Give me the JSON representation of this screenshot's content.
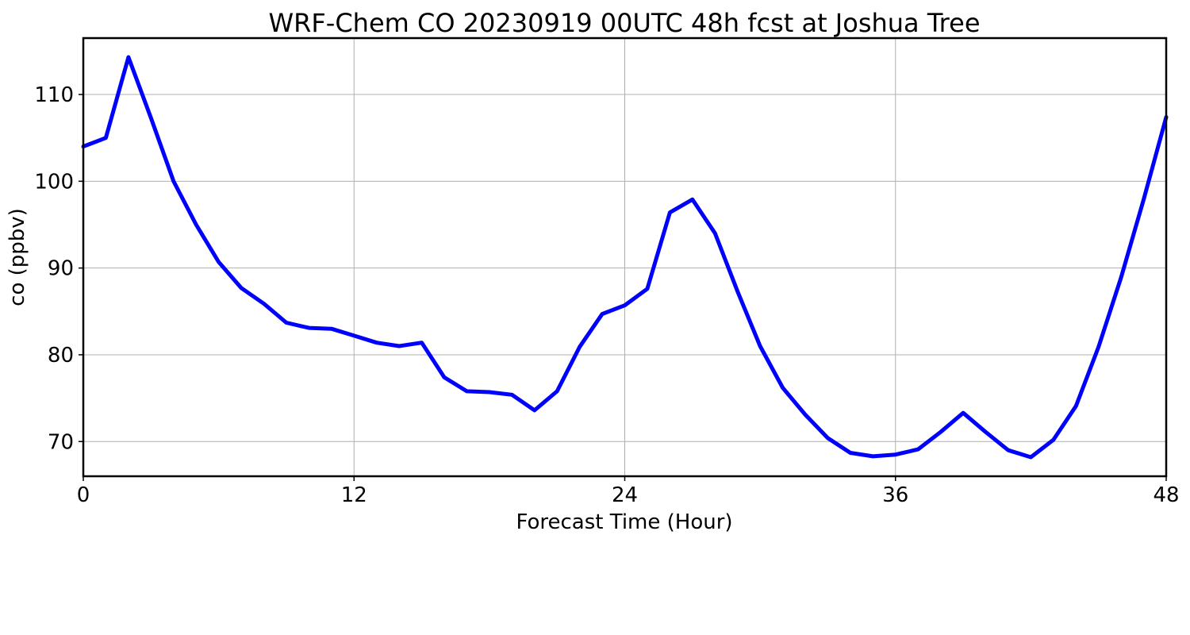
{
  "chart_data": {
    "type": "line",
    "title": "WRF-Chem CO  20230919 00UTC 48h fcst at Joshua Tree",
    "xlabel": "Forecast Time (Hour)",
    "ylabel": "co  (ppbv)",
    "xlim": [
      0,
      48
    ],
    "ylim": [
      66,
      116.5
    ],
    "xticks": [
      0,
      12,
      24,
      36,
      48
    ],
    "yticks": [
      70,
      80,
      90,
      100,
      110
    ],
    "grid": true,
    "series": [
      {
        "color": "#0000ff",
        "x": [
          0,
          1,
          2,
          3,
          4,
          5,
          6,
          7,
          8,
          9,
          10,
          11,
          12,
          13,
          14,
          15,
          16,
          17,
          18,
          19,
          20,
          21,
          22,
          23,
          24,
          25,
          26,
          27,
          28,
          29,
          30,
          31,
          32,
          33,
          34,
          35,
          36,
          37,
          38,
          39,
          40,
          41,
          42,
          43,
          44,
          45,
          46,
          47,
          48
        ],
        "values": [
          104.0,
          105.0,
          114.3,
          107.3,
          100.0,
          95.0,
          90.7,
          87.7,
          85.9,
          83.7,
          83.1,
          83.0,
          82.2,
          81.4,
          81.0,
          81.4,
          77.4,
          75.8,
          75.7,
          75.4,
          73.6,
          75.8,
          80.9,
          84.7,
          85.7,
          87.6,
          96.4,
          97.9,
          94.0,
          87.3,
          81.0,
          76.2,
          73.1,
          70.4,
          68.7,
          68.3,
          68.5,
          69.1,
          71.1,
          73.3,
          71.1,
          69.0,
          68.2,
          70.2,
          74.1,
          80.9,
          88.9,
          97.9,
          107.4
        ]
      }
    ]
  }
}
